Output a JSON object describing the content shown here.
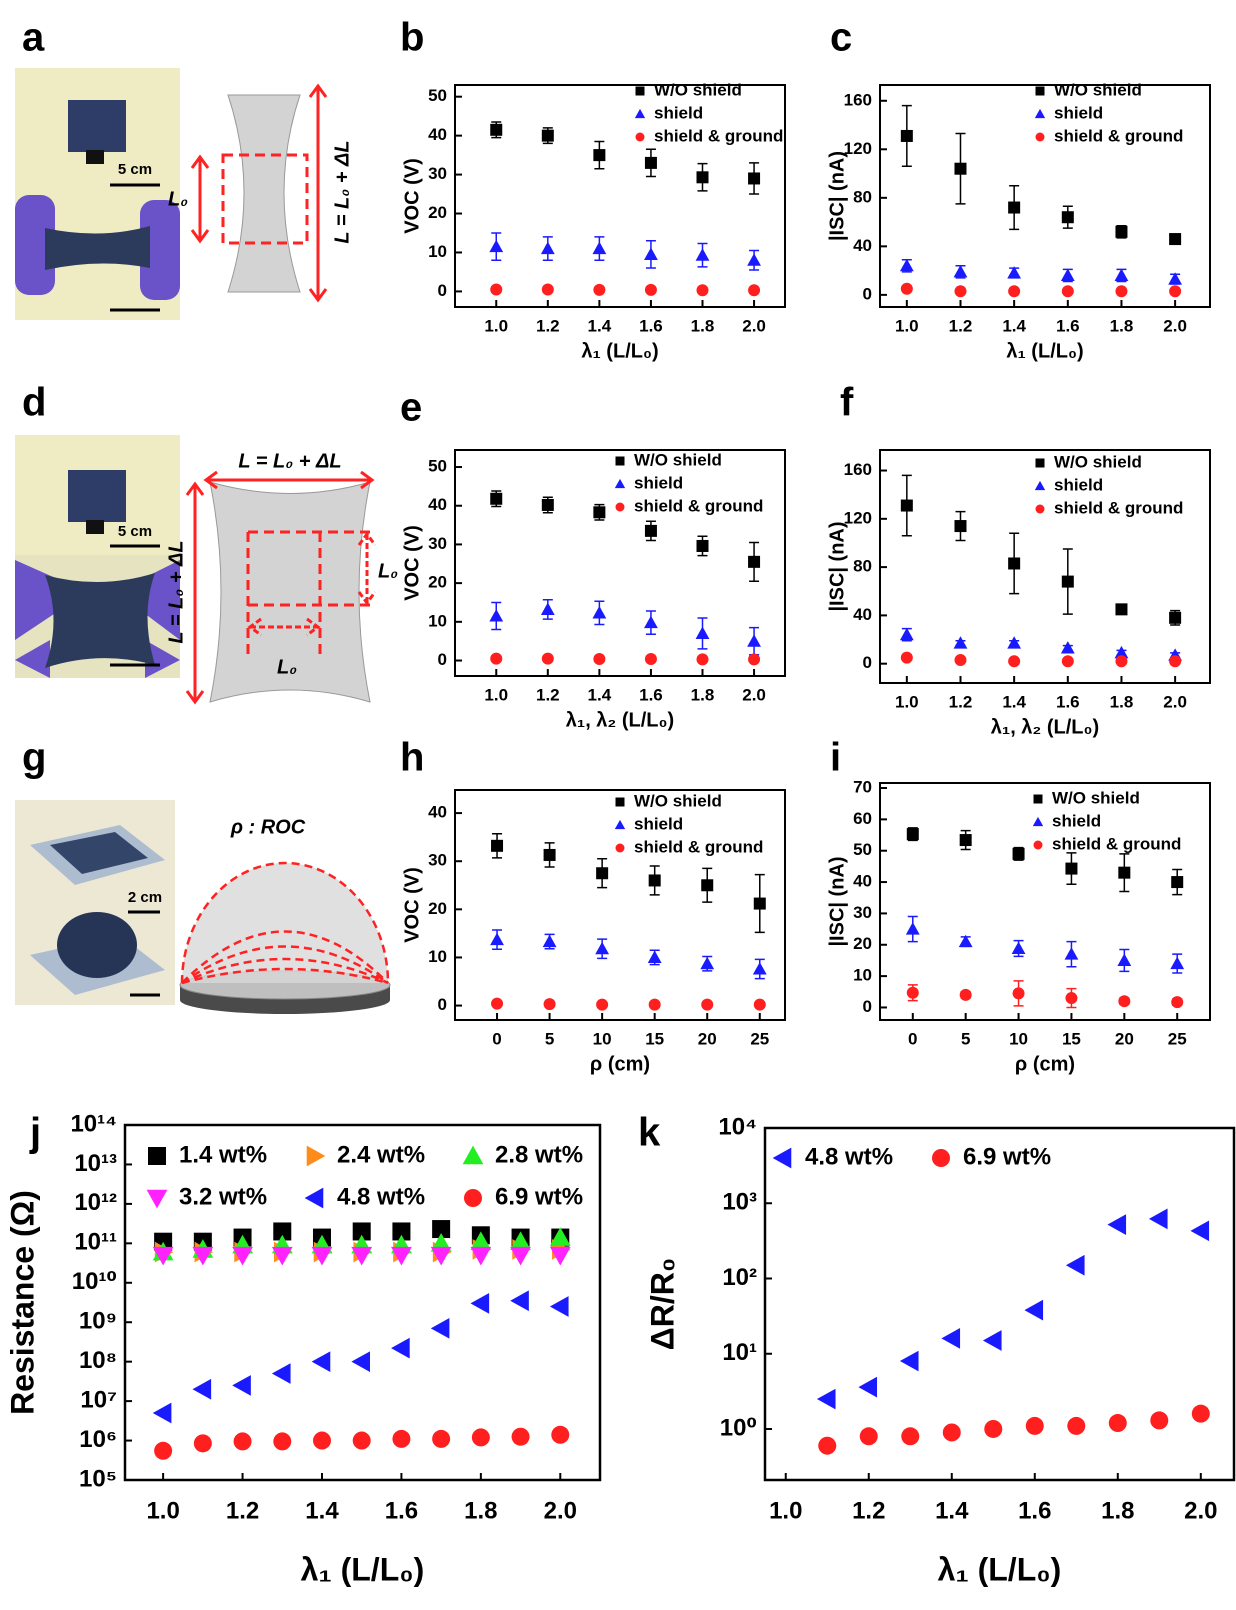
{
  "illustrations": {
    "a": {
      "label": "a",
      "scale_bar": "5 cm",
      "strain_label": "L₀",
      "length_label": "L = L₀ + ΔL"
    },
    "d": {
      "label": "d",
      "scale_bar": "5 cm",
      "width_label": "L = L₀ + ΔL",
      "height_label": "L = L₀ + ΔL",
      "side_label": "L₀",
      "bottom_label": "L₀"
    },
    "g": {
      "label": "g",
      "scale_bar": "2 cm",
      "curvature_label": "ρ : ROC"
    }
  },
  "chart_data": [
    {
      "type": "scatter",
      "label": "b",
      "x": [
        1,
        1.2,
        1.4,
        1.6,
        1.8,
        2
      ],
      "series": [
        {
          "name": "W/O shield",
          "color": "#000000",
          "marker": "square",
          "values": [
            41.5,
            40,
            35,
            33,
            29.3,
            29
          ],
          "errors": [
            2,
            2,
            3.5,
            3.5,
            3.5,
            4
          ]
        },
        {
          "name": "shield",
          "color": "#1a1aff",
          "marker": "triangle-up",
          "values": [
            11.5,
            11,
            11,
            9.5,
            9.3,
            8
          ],
          "errors": [
            3.5,
            3,
            3,
            3.5,
            3,
            2.5
          ]
        },
        {
          "name": "shield & ground",
          "color": "#ff1f1f",
          "marker": "circle",
          "values": [
            0.5,
            0.5,
            0.4,
            0.4,
            0.3,
            0.3
          ],
          "errors": [
            0,
            0,
            0,
            0,
            0,
            0
          ]
        }
      ],
      "xlim": [
        0.84,
        2.12
      ],
      "xticks": [
        {
          "value": 1,
          "label": "1.0"
        },
        1.2,
        1.4,
        1.6,
        1.8,
        {
          "value": 2,
          "label": "2.0"
        }
      ],
      "ylim": [
        -4,
        53
      ],
      "yticks": [
        0,
        10,
        20,
        30,
        40,
        50
      ],
      "x_label": "λ₁ (L/L₀)",
      "y_label": "VOC (V)",
      "legend": "upper right"
    },
    {
      "type": "scatter",
      "label": "c",
      "x": [
        1,
        1.2,
        1.4,
        1.6,
        1.8,
        2
      ],
      "series": [
        {
          "name": "W/O shield",
          "color": "#000000",
          "marker": "square",
          "values": [
            131,
            104,
            72,
            64,
            52,
            46
          ],
          "errors": [
            25,
            29,
            18,
            9,
            5,
            2
          ]
        },
        {
          "name": "shield",
          "color": "#1a1aff",
          "marker": "triangle-up",
          "values": [
            24,
            19,
            18,
            16,
            16,
            13
          ],
          "errors": [
            5,
            5,
            4,
            5,
            5,
            4
          ]
        },
        {
          "name": "shield & ground",
          "color": "#ff1f1f",
          "marker": "circle",
          "values": [
            5,
            3,
            3,
            3,
            3,
            3
          ],
          "errors": [
            1,
            1,
            1,
            1,
            1,
            1
          ]
        }
      ],
      "xlim": [
        0.9,
        2.13
      ],
      "xticks": [
        {
          "value": 1,
          "label": "1.0"
        },
        1.2,
        1.4,
        1.6,
        1.8,
        {
          "value": 2,
          "label": "2.0"
        }
      ],
      "ylim": [
        -10,
        173
      ],
      "yticks": [
        0,
        40,
        80,
        120,
        160
      ],
      "x_label": "λ₁ (L/L₀)",
      "y_label": "|ISC| (nA)",
      "legend": "upper right"
    },
    {
      "type": "scatter",
      "label": "e",
      "x": [
        1,
        1.2,
        1.4,
        1.6,
        1.8,
        2
      ],
      "series": [
        {
          "name": "W/O shield",
          "color": "#000000",
          "marker": "square",
          "values": [
            41.8,
            40.2,
            38.3,
            33.5,
            29.6,
            25.5
          ],
          "errors": [
            2,
            2,
            2,
            2.5,
            2.5,
            5
          ]
        },
        {
          "name": "shield",
          "color": "#1a1aff",
          "marker": "triangle-up",
          "values": [
            11.5,
            13.2,
            12.3,
            9.8,
            7,
            5
          ],
          "errors": [
            3.5,
            2.5,
            3,
            3,
            4,
            3.5
          ]
        },
        {
          "name": "shield & ground",
          "color": "#ff1f1f",
          "marker": "circle",
          "values": [
            0.5,
            0.5,
            0.4,
            0.4,
            0.3,
            0.3
          ],
          "errors": [
            0,
            0,
            0,
            0,
            0,
            0
          ]
        }
      ],
      "xlim": [
        0.84,
        2.12
      ],
      "xticks": [
        {
          "value": 1,
          "label": "1.0"
        },
        1.2,
        1.4,
        1.6,
        1.8,
        {
          "value": 2,
          "label": "2.0"
        }
      ],
      "ylim": [
        -4,
        54.4
      ],
      "yticks": [
        0,
        10,
        20,
        30,
        40,
        50
      ],
      "x_label": "λ₁, λ₂ (L/L₀)",
      "y_label": "VOC (V)",
      "legend": "upper right"
    },
    {
      "type": "scatter",
      "label": "f",
      "x": [
        1,
        1.2,
        1.4,
        1.6,
        1.8,
        2
      ],
      "series": [
        {
          "name": "W/O shield",
          "color": "#000000",
          "marker": "square",
          "values": [
            131,
            114,
            83,
            68,
            45,
            38
          ],
          "errors": [
            25,
            12,
            25,
            27,
            2,
            6
          ]
        },
        {
          "name": "shield",
          "color": "#1a1aff",
          "marker": "triangle-up",
          "values": [
            24,
            17,
            17,
            13,
            9,
            7
          ],
          "errors": [
            5,
            2,
            2,
            2,
            2,
            2
          ]
        },
        {
          "name": "shield & ground",
          "color": "#ff1f1f",
          "marker": "circle",
          "values": [
            5,
            3,
            2,
            2,
            2,
            2
          ],
          "errors": [
            1,
            1,
            1,
            1,
            1,
            1
          ]
        }
      ],
      "xlim": [
        0.9,
        2.13
      ],
      "xticks": [
        {
          "value": 1,
          "label": "1.0"
        },
        1.2,
        1.4,
        1.6,
        1.8,
        {
          "value": 2,
          "label": "2.0"
        }
      ],
      "ylim": [
        -16,
        177
      ],
      "yticks": [
        0,
        40,
        80,
        120,
        160
      ],
      "x_label": "λ₁, λ₂ (L/L₀)",
      "y_label": "|ISC| (nA)",
      "legend": "upper right"
    },
    {
      "type": "scatter",
      "label": "h",
      "x": [
        0,
        5,
        10,
        15,
        20,
        25
      ],
      "series": [
        {
          "name": "W/O shield",
          "color": "#000000",
          "marker": "square",
          "values": [
            33.2,
            31.3,
            27.5,
            26,
            25,
            21.2
          ],
          "errors": [
            2.5,
            2.5,
            3,
            3,
            3.5,
            6
          ]
        },
        {
          "name": "shield",
          "color": "#1a1aff",
          "marker": "triangle-up",
          "values": [
            13.7,
            13.3,
            11.8,
            10,
            8.7,
            7.6
          ],
          "errors": [
            2,
            1.5,
            2,
            1.5,
            1.5,
            2
          ]
        },
        {
          "name": "shield & ground",
          "color": "#ff1f1f",
          "marker": "circle",
          "values": [
            0.4,
            0.3,
            0.2,
            0.2,
            0.2,
            0.2
          ],
          "errors": [
            0,
            0,
            0,
            0,
            0,
            0
          ]
        }
      ],
      "xlim": [
        -4,
        27.4
      ],
      "xticks": [
        0,
        5,
        10,
        15,
        20,
        25
      ],
      "ylim": [
        -3,
        44.8
      ],
      "yticks": [
        0,
        10,
        20,
        30,
        40
      ],
      "x_label": "ρ (cm)",
      "y_label": "VOC (V)",
      "legend": "upper right"
    },
    {
      "type": "scatter",
      "label": "i",
      "x": [
        0,
        5,
        10,
        15,
        20,
        25
      ],
      "series": [
        {
          "name": "W/O shield",
          "color": "#000000",
          "marker": "square",
          "values": [
            55.3,
            53.4,
            49,
            44.3,
            43,
            40
          ],
          "errors": [
            2,
            3,
            2,
            5,
            6,
            4
          ]
        },
        {
          "name": "shield",
          "color": "#1a1aff",
          "marker": "triangle-up",
          "values": [
            25,
            21,
            18.8,
            17,
            15,
            14
          ],
          "errors": [
            4,
            1.5,
            2.5,
            4,
            3.5,
            3
          ]
        },
        {
          "name": "shield & ground",
          "color": "#ff1f1f",
          "marker": "circle",
          "values": [
            4.7,
            4,
            4.5,
            3,
            2,
            1.7
          ],
          "errors": [
            2.5,
            1,
            4,
            3,
            1,
            1
          ]
        }
      ],
      "xlim": [
        -3.1,
        28.1
      ],
      "xticks": [
        0,
        5,
        10,
        15,
        20,
        25
      ],
      "ylim": [
        -4,
        71.6
      ],
      "yticks": [
        0,
        10,
        20,
        30,
        40,
        50,
        60,
        70
      ],
      "x_label": "ρ (cm)",
      "y_label": "|ISC| (nA)",
      "legend": "upper right"
    },
    {
      "type": "scatter",
      "label": "j",
      "x": [
        1,
        1.1,
        1.2,
        1.3,
        1.4,
        1.5,
        1.6,
        1.7,
        1.8,
        1.9,
        2
      ],
      "series": [
        {
          "name": "1.4 wt%",
          "color": "#000000",
          "marker": "square",
          "values": [
            110000000000,
            110000000000,
            140000000000,
            200000000000,
            140000000000,
            200000000000,
            200000000000,
            230000000000,
            160000000000,
            140000000000,
            140000000000
          ]
        },
        {
          "name": "2.4 wt%",
          "color": "#ff8c1a",
          "marker": "triangle-right",
          "values": [
            60000000000,
            60000000000,
            60000000000,
            60000000000,
            60000000000,
            60000000000,
            60000000000,
            60000000000,
            70000000000,
            70000000000,
            70000000000
          ]
        },
        {
          "name": "2.8 wt%",
          "color": "#22ee22",
          "marker": "triangle-up",
          "values": [
            60000000000,
            70000000000,
            90000000000,
            90000000000,
            90000000000,
            90000000000,
            90000000000,
            100000000000,
            110000000000,
            110000000000,
            140000000000
          ]
        },
        {
          "name": "3.2 wt%",
          "color": "#ff22ff",
          "marker": "triangle-down",
          "values": [
            50000000000,
            50000000000,
            50000000000,
            50000000000,
            50000000000,
            50000000000,
            50000000000,
            50000000000,
            50000000000,
            50000000000,
            50000000000
          ]
        },
        {
          "name": "4.8 wt%",
          "color": "#1a1aff",
          "marker": "triangle-left",
          "values": [
            5000000,
            20000000,
            25000000,
            50000000,
            100000000,
            100000000,
            220000000,
            700000000,
            3000000000,
            3500000000,
            2500000000
          ]
        },
        {
          "name": "6.9 wt%",
          "color": "#ff1f1f",
          "marker": "circle",
          "values": [
            550000,
            850000,
            950000,
            950000,
            1000000,
            1000000,
            1100000,
            1100000,
            1200000,
            1250000,
            1400000
          ]
        }
      ],
      "xlim": [
        0.904,
        2.1
      ],
      "xticks": [
        {
          "value": 1,
          "label": "1.0"
        },
        1.2,
        1.4,
        1.6,
        1.8,
        {
          "value": 2,
          "label": "2.0"
        }
      ],
      "log_y": true,
      "ylim": [
        100000,
        100000000000000
      ],
      "yticks": [
        {
          "value": 100000,
          "label": "10⁵"
        },
        {
          "value": 1000000,
          "label": "10⁶"
        },
        {
          "value": 10000000,
          "label": "10⁷"
        },
        {
          "value": 100000000,
          "label": "10⁸"
        },
        {
          "value": 1000000000,
          "label": "10⁹"
        },
        {
          "value": 10000000000,
          "label": "10¹⁰"
        },
        {
          "value": 100000000000,
          "label": "10¹¹"
        },
        {
          "value": 1000000000000,
          "label": "10¹²"
        },
        {
          "value": 10000000000000,
          "label": "10¹³"
        },
        {
          "value": 100000000000000,
          "label": "10¹⁴"
        }
      ],
      "x_label": "λ₁ (L/L₀)",
      "y_label": "Resistance (Ω)",
      "legend": "upper left",
      "legend_columns": 3
    },
    {
      "type": "scatter",
      "label": "k",
      "x": [
        1.1,
        1.2,
        1.3,
        1.4,
        1.5,
        1.6,
        1.7,
        1.8,
        1.9,
        2
      ],
      "series": [
        {
          "name": "4.8 wt%",
          "color": "#1a1aff",
          "marker": "triangle-left",
          "values": [
            2.5,
            3.6,
            8,
            16,
            15,
            38,
            150,
            520,
            620,
            430
          ]
        },
        {
          "name": "6.9 wt%",
          "color": "#ff1f1f",
          "marker": "circle",
          "values": [
            0.6,
            0.8,
            0.8,
            0.9,
            1,
            1.1,
            1.1,
            1.2,
            1.3,
            1.6
          ]
        }
      ],
      "xlim": [
        0.95,
        2.08
      ],
      "xticks": [
        {
          "value": 1,
          "label": "1.0"
        },
        1.2,
        1.4,
        1.6,
        1.8,
        {
          "value": 2,
          "label": "2.0"
        }
      ],
      "log_y": true,
      "ylim": [
        0.21,
        10000
      ],
      "yticks": [
        {
          "value": 1,
          "label": "10⁰"
        },
        {
          "value": 10,
          "label": "10¹"
        },
        {
          "value": 100,
          "label": "10²"
        },
        {
          "value": 1000,
          "label": "10³"
        },
        {
          "value": 10000,
          "label": "10⁴"
        }
      ],
      "x_label": "λ₁ (L/L₀)",
      "y_label": "ΔR/R₀",
      "legend": "upper left",
      "legend_columns": 2
    }
  ]
}
